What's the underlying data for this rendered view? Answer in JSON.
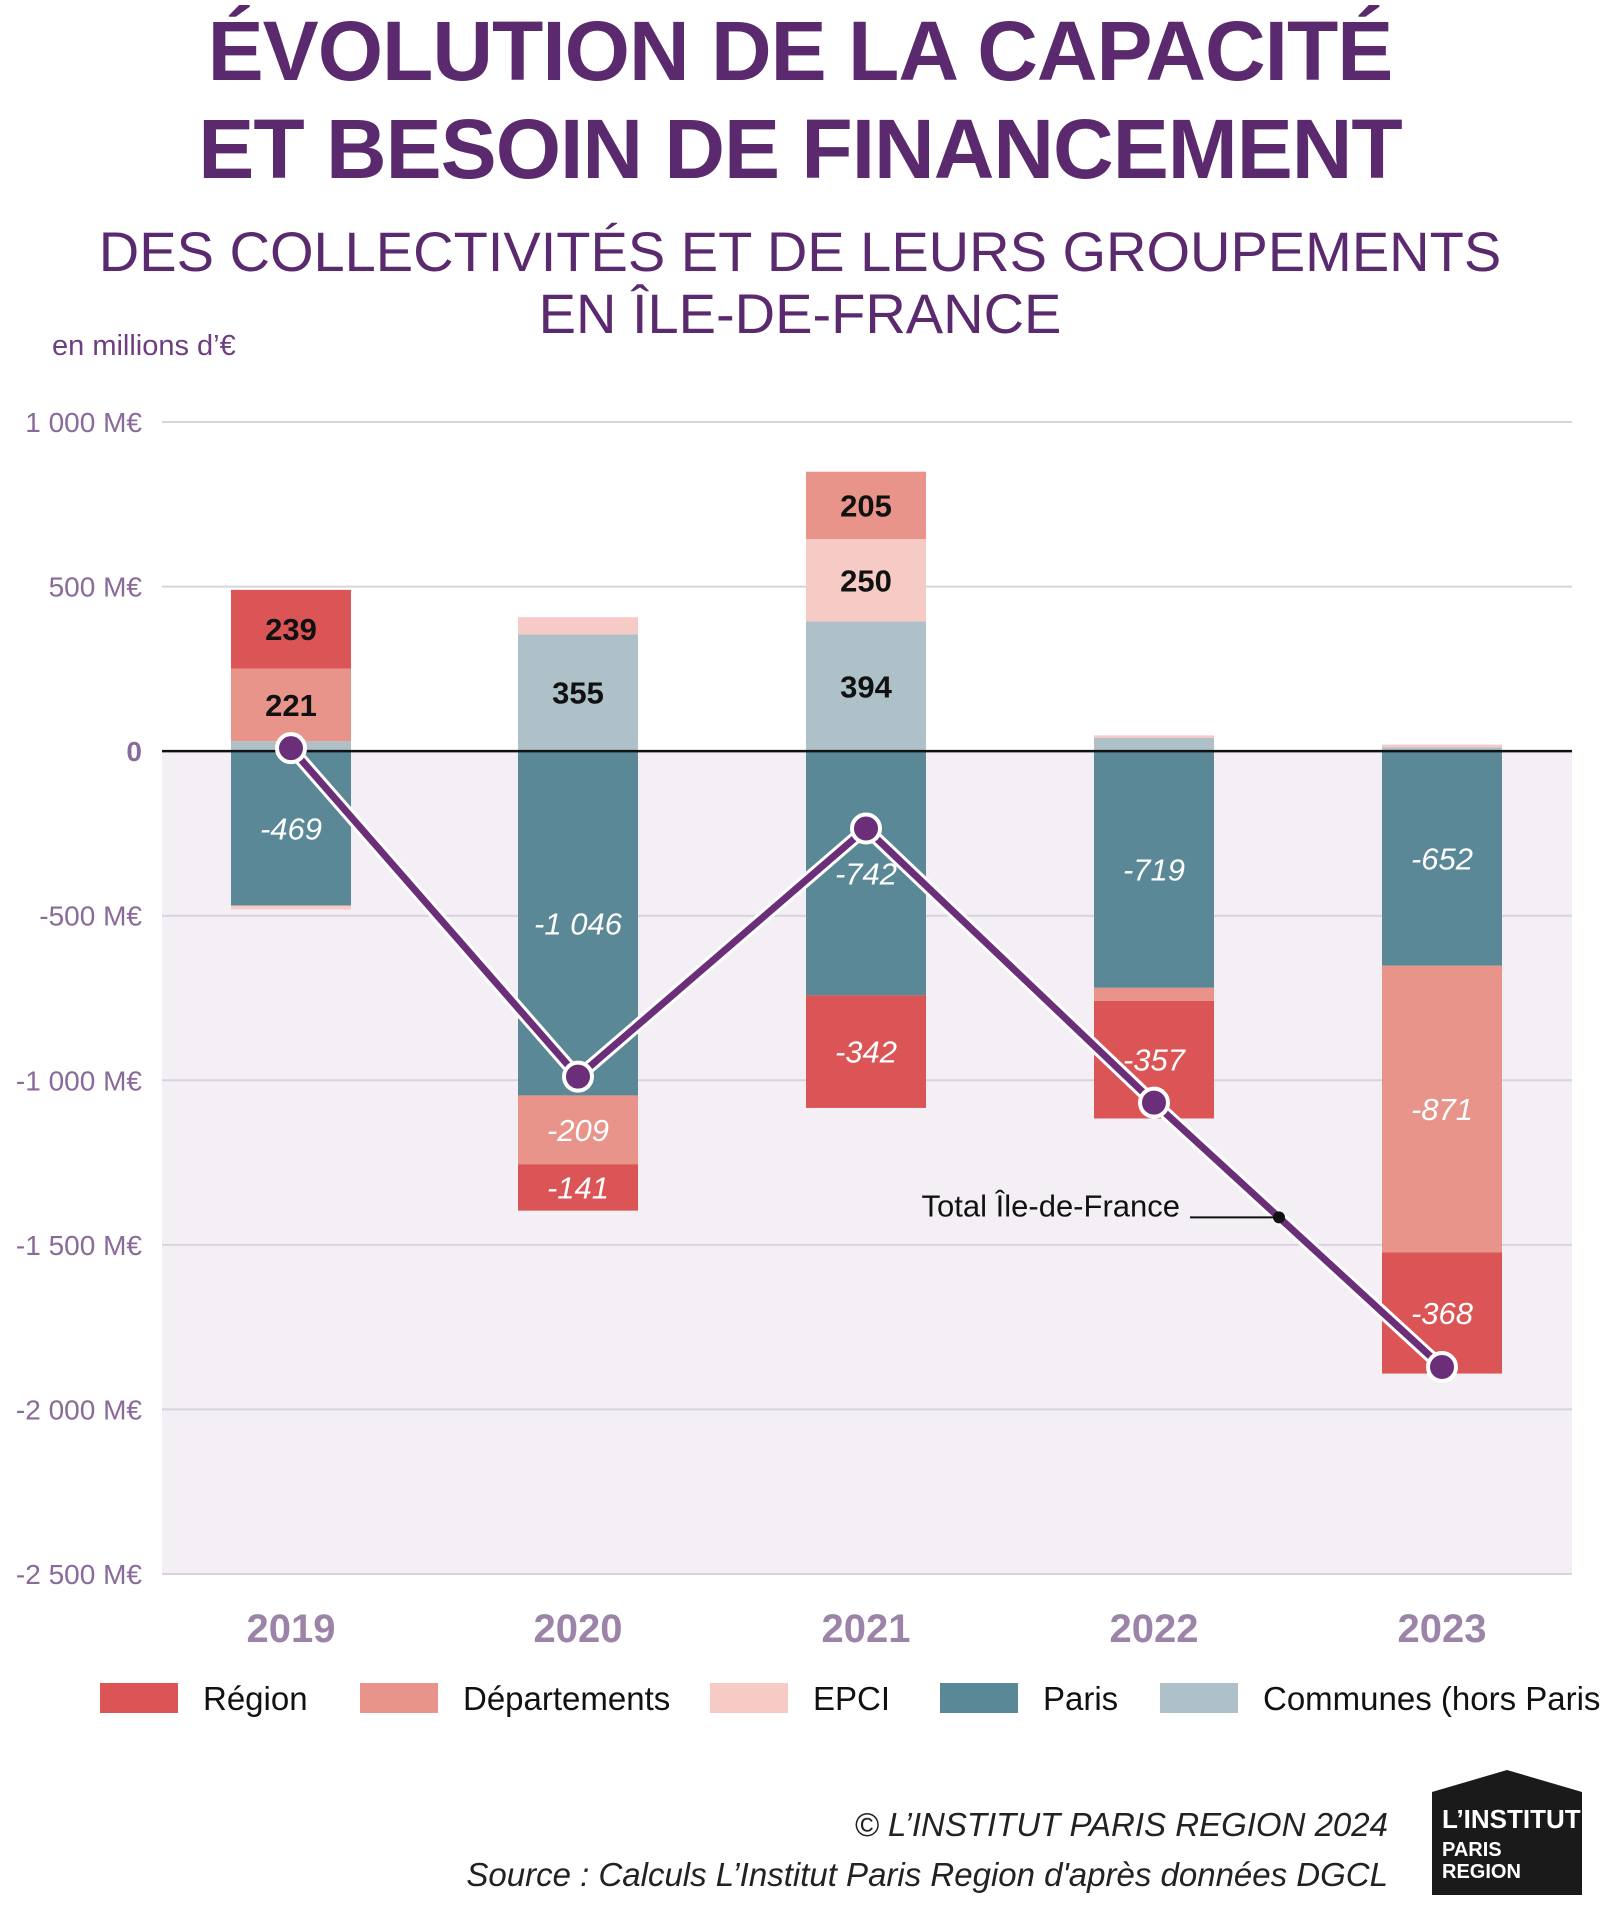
{
  "title_line1": "ÉVOLUTION DE LA CAPACITÉ",
  "title_line2": "ET BESOIN DE FINANCEMENT",
  "subtitle_line1": "DES COLLECTIVITÉS ET DE LEURS GROUPEMENTS",
  "subtitle_line2": "EN ÎLE-DE-FRANCE",
  "unit_label": "en millions d’€",
  "copyright": "© L’INSTITUT PARIS REGION 2024",
  "source": "Source : Calculs L’Institut Paris Region d'après données DGCL",
  "logo": {
    "line1": "L’INSTITUT",
    "line2": "PARIS",
    "line3": "REGION"
  },
  "chart_data": {
    "type": "bar",
    "stacked": true,
    "categories": [
      "2019",
      "2020",
      "2021",
      "2022",
      "2023"
    ],
    "ylim": [
      -2500,
      1000
    ],
    "yticks": [
      1000,
      500,
      0,
      -500,
      -1000,
      -1500,
      -2000,
      -2500
    ],
    "ytick_labels": [
      "1 000 M€",
      "500 M€",
      "0",
      "-500 M€",
      "-1 000 M€",
      "-1 500 M€",
      "-2 000 M€",
      "-2 500 M€"
    ],
    "grid": true,
    "legend_position": "bottom",
    "series": [
      {
        "name": "Région",
        "color": "#dc5556",
        "values": [
          239,
          -141,
          -342,
          -357,
          -368
        ],
        "labels": [
          "239",
          "-141",
          "-342",
          "-357",
          "-368"
        ]
      },
      {
        "name": "Départements",
        "color": "#e8948a",
        "values": [
          221,
          -209,
          205,
          -40,
          -871
        ],
        "labels": [
          "221",
          "-209",
          "205",
          "",
          "-871"
        ]
      },
      {
        "name": "EPCI",
        "color": "#f7cbc5",
        "values": [
          -12,
          52,
          250,
          8,
          8
        ],
        "labels": [
          "",
          "",
          "250",
          "",
          ""
        ]
      },
      {
        "name": "Paris",
        "color": "#5b8896",
        "values": [
          -469,
          -1046,
          -742,
          -719,
          -652
        ],
        "labels": [
          "-469",
          "-1 046",
          "-742",
          "-719",
          "-652"
        ]
      },
      {
        "name": "Communes (hors Paris)",
        "color": "#aec1c9",
        "values": [
          30,
          355,
          394,
          40,
          12
        ],
        "labels": [
          "",
          "355",
          "394",
          "",
          ""
        ]
      }
    ],
    "total_line": {
      "name": "Total Île-de-France",
      "color": "#6b2f7a",
      "values": [
        9,
        -989,
        -235,
        -1068,
        -1871
      ]
    },
    "colors": {
      "plot_background": "#f3eff5",
      "axis_text": "#8a6a99",
      "year_text": "#9b84a8"
    }
  }
}
